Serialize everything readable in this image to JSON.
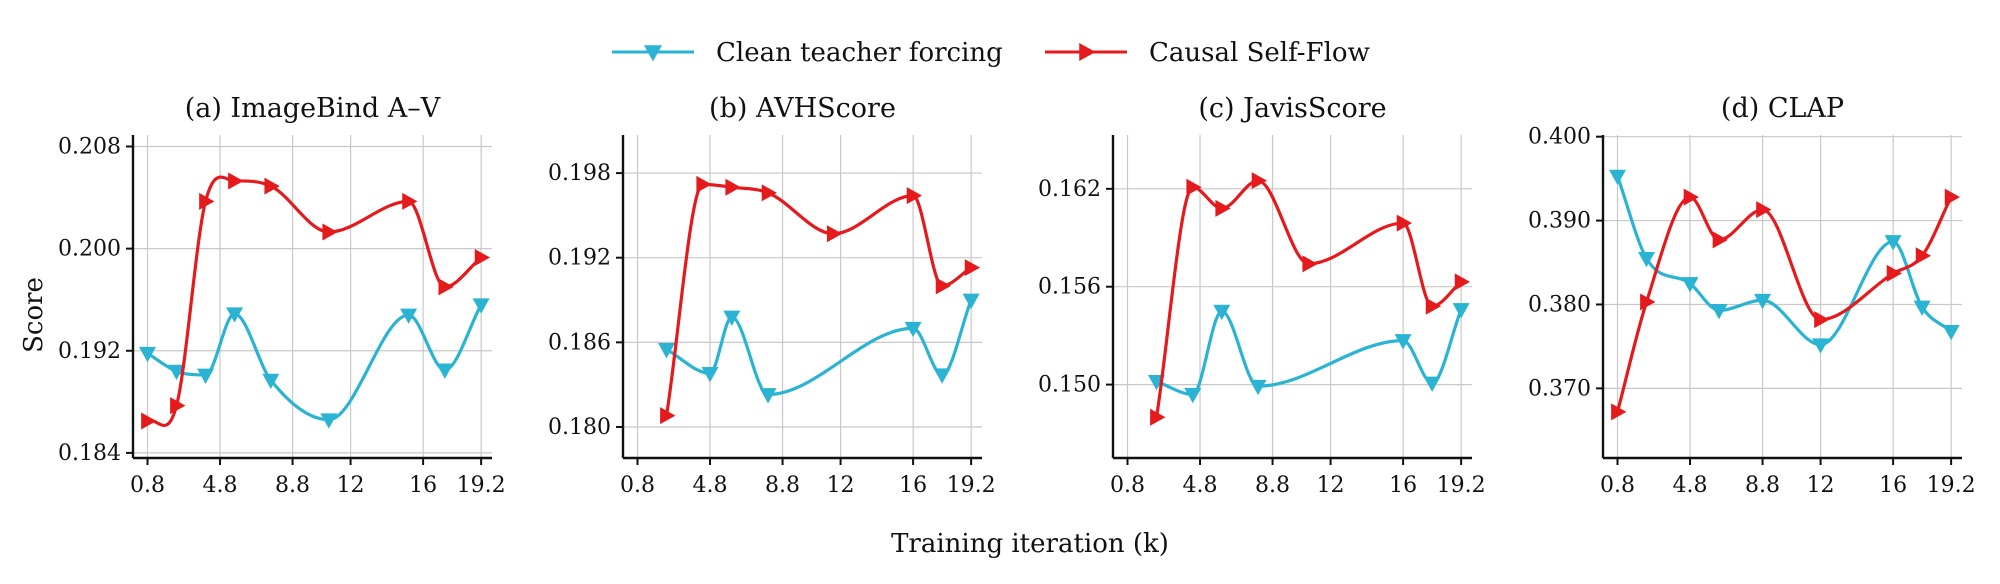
{
  "legend": {
    "series": [
      {
        "name": "Clean teacher forcing",
        "color": "#2ab3d3",
        "marker": "triangle-down"
      },
      {
        "name": "Causal Self-Flow",
        "color": "#e41a1c",
        "marker": "triangle-right"
      }
    ]
  },
  "xlabel": "Training iteration (k)",
  "ylabel": "Score",
  "chart_data": [
    {
      "type": "line",
      "title": "(a) ImageBind A–V",
      "xlim": [
        0.0,
        19.8
      ],
      "ylim": [
        0.1836,
        0.2089
      ],
      "xticks": [
        0.8,
        4.8,
        8.8,
        12,
        16,
        19.2
      ],
      "yticks": [
        0.184,
        0.192,
        0.2,
        0.208
      ],
      "ytick_labels": [
        "0.184",
        "0.192",
        "0.200",
        "0.208"
      ],
      "grid": true,
      "series": [
        {
          "name": "Clean teacher forcing",
          "x": [
            0.8,
            2.4,
            4.0,
            5.6,
            7.6,
            10.8,
            15.2,
            17.2,
            19.2
          ],
          "y": [
            0.1918,
            0.1904,
            0.1901,
            0.1949,
            0.1897,
            0.1866,
            0.1948,
            0.1905,
            0.1956
          ]
        },
        {
          "name": "Causal Self-Flow",
          "x": [
            0.8,
            2.4,
            4.0,
            5.6,
            7.6,
            10.8,
            15.2,
            17.2,
            19.2
          ],
          "y": [
            0.1865,
            0.1877,
            0.2037,
            0.2053,
            0.2049,
            0.2013,
            0.2037,
            0.197,
            0.1993
          ]
        }
      ]
    },
    {
      "type": "line",
      "title": "(b) AVHScore",
      "xlim": [
        0.0,
        19.8
      ],
      "ylim": [
        0.1778,
        0.2007
      ],
      "xticks": [
        0.8,
        4.8,
        8.8,
        12,
        16,
        19.2
      ],
      "yticks": [
        0.18,
        0.186,
        0.192,
        0.198
      ],
      "ytick_labels": [
        "0.180",
        "0.186",
        "0.192",
        "0.198"
      ],
      "grid": true,
      "series": [
        {
          "name": "Clean teacher forcing",
          "x": [
            2.4,
            4.8,
            6.0,
            8.0,
            16.0,
            17.6,
            19.2
          ],
          "y": [
            0.1855,
            0.1838,
            0.1878,
            0.1823,
            0.187,
            0.1837,
            0.189
          ]
        },
        {
          "name": "Causal Self-Flow",
          "x": [
            2.4,
            4.4,
            6.0,
            8.0,
            11.6,
            16.0,
            17.6,
            19.2
          ],
          "y": [
            0.1808,
            0.1972,
            0.197,
            0.1966,
            0.1937,
            0.1964,
            0.19,
            0.1913
          ]
        }
      ]
    },
    {
      "type": "line",
      "title": "(c) JavisScore",
      "xlim": [
        0.0,
        19.8
      ],
      "ylim": [
        0.1455,
        0.1653
      ],
      "xticks": [
        0.8,
        4.8,
        8.8,
        12,
        16,
        19.2
      ],
      "yticks": [
        0.15,
        0.156,
        0.162
      ],
      "ytick_labels": [
        "0.150",
        "0.156",
        "0.162"
      ],
      "grid": true,
      "series": [
        {
          "name": "Clean teacher forcing",
          "x": [
            2.4,
            4.4,
            6.0,
            8.0,
            16.0,
            17.6,
            19.2
          ],
          "y": [
            0.1502,
            0.1494,
            0.1545,
            0.1499,
            0.1527,
            0.1501,
            0.1546
          ]
        },
        {
          "name": "Causal Self-Flow",
          "x": [
            2.4,
            4.4,
            6.0,
            8.0,
            10.8,
            16.0,
            17.6,
            19.2
          ],
          "y": [
            0.148,
            0.1621,
            0.1608,
            0.1625,
            0.1574,
            0.1599,
            0.1548,
            0.1563
          ]
        }
      ]
    },
    {
      "type": "line",
      "title": "(d) CLAP",
      "xlim": [
        0.0,
        19.8
      ],
      "ylim": [
        0.3617,
        0.4002
      ],
      "xticks": [
        0.8,
        4.8,
        8.8,
        12,
        16,
        19.2
      ],
      "yticks": [
        0.37,
        0.38,
        0.39,
        0.4
      ],
      "ytick_labels": [
        "0.370",
        "0.380",
        "0.390",
        "0.400"
      ],
      "grid": true,
      "series": [
        {
          "name": "Clean teacher forcing",
          "x": [
            0.8,
            2.4,
            4.8,
            6.4,
            8.8,
            12.0,
            16.0,
            17.6,
            19.2
          ],
          "y": [
            0.3953,
            0.3855,
            0.3825,
            0.3793,
            0.3805,
            0.3752,
            0.3875,
            0.3797,
            0.3768
          ]
        },
        {
          "name": "Causal Self-Flow",
          "x": [
            0.8,
            2.4,
            4.8,
            6.4,
            8.8,
            12.0,
            16.0,
            17.6,
            19.2
          ],
          "y": [
            0.3672,
            0.3803,
            0.3928,
            0.3877,
            0.3913,
            0.3782,
            0.3837,
            0.3858,
            0.3928
          ]
        }
      ]
    }
  ]
}
